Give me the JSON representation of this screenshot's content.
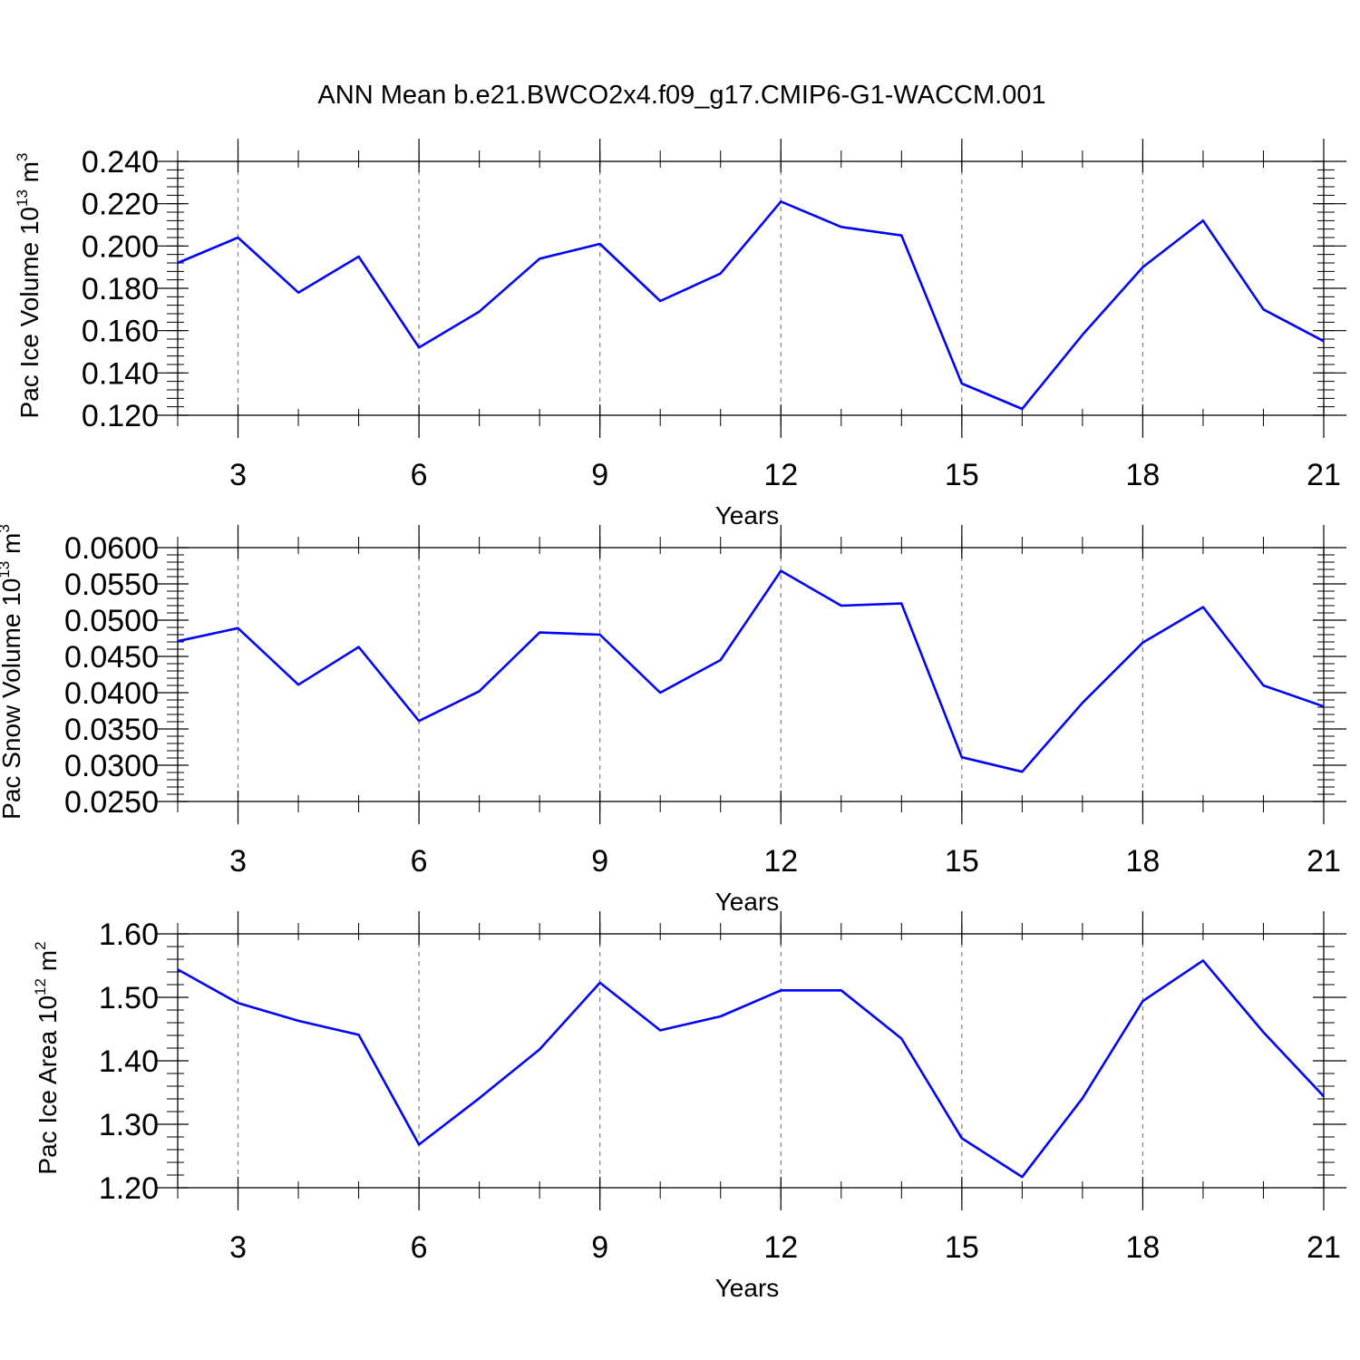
{
  "title": "ANN Mean b.e21.BWCO2x4.f09_g17.CMIP6-G1-WACCM.001",
  "colors": {
    "line": "#0000ff",
    "axis": "#000000",
    "grid": "#808080"
  },
  "chart_data": [
    {
      "type": "line",
      "ylabel_main": "Pac Ice Volume 10",
      "ylabel_exp": "13",
      "ylabel_unit": " m",
      "ylabel_unit_exp": "3",
      "xlabel": "Years",
      "xlim": [
        2,
        21
      ],
      "ylim": [
        0.12,
        0.24
      ],
      "xticks": [
        "3",
        "6",
        "9",
        "12",
        "15",
        "18",
        "21"
      ],
      "yticks": [
        "0.120",
        "0.140",
        "0.160",
        "0.180",
        "0.200",
        "0.220",
        "0.240"
      ],
      "grid": "x-dashed",
      "x": [
        2,
        3,
        4,
        5,
        6,
        7,
        8,
        9,
        10,
        11,
        12,
        13,
        14,
        15,
        16,
        17,
        18,
        19,
        20,
        21
      ],
      "series": [
        {
          "values": [
            0.192,
            0.204,
            0.178,
            0.195,
            0.152,
            0.169,
            0.194,
            0.201,
            0.174,
            0.187,
            0.221,
            0.209,
            0.205,
            0.135,
            0.123,
            0.158,
            0.19,
            0.212,
            0.17,
            0.155
          ]
        }
      ]
    },
    {
      "type": "line",
      "ylabel_main": "Pac Snow Volume 10",
      "ylabel_exp": "13",
      "ylabel_unit": " m",
      "ylabel_unit_exp": "3",
      "xlabel": "Years",
      "xlim": [
        2,
        21
      ],
      "ylim": [
        0.025,
        0.06
      ],
      "xticks": [
        "3",
        "6",
        "9",
        "12",
        "15",
        "18",
        "21"
      ],
      "yticks": [
        "0.0250",
        "0.0300",
        "0.0350",
        "0.0400",
        "0.0450",
        "0.0500",
        "0.0550",
        "0.0600"
      ],
      "grid": "x-dashed",
      "x": [
        2,
        3,
        4,
        5,
        6,
        7,
        8,
        9,
        10,
        11,
        12,
        13,
        14,
        15,
        16,
        17,
        18,
        19,
        20,
        21
      ],
      "series": [
        {
          "values": [
            0.0471,
            0.0489,
            0.0411,
            0.0463,
            0.0361,
            0.0402,
            0.0483,
            0.048,
            0.04,
            0.0445,
            0.0568,
            0.052,
            0.0523,
            0.0311,
            0.0291,
            0.0386,
            0.0469,
            0.0518,
            0.041,
            0.0381
          ]
        }
      ]
    },
    {
      "type": "line",
      "ylabel_main": "Pac Ice Area 10",
      "ylabel_exp": "12",
      "ylabel_unit": " m",
      "ylabel_unit_exp": "2",
      "xlabel": "Years",
      "xlim": [
        2,
        21
      ],
      "ylim": [
        1.2,
        1.6
      ],
      "xticks": [
        "3",
        "6",
        "9",
        "12",
        "15",
        "18",
        "21"
      ],
      "yticks": [
        "1.20",
        "1.30",
        "1.40",
        "1.50",
        "1.60"
      ],
      "grid": "x-dashed",
      "x": [
        2,
        3,
        4,
        5,
        6,
        7,
        8,
        9,
        10,
        11,
        12,
        13,
        14,
        15,
        16,
        17,
        18,
        19,
        20,
        21
      ],
      "series": [
        {
          "values": [
            1.544,
            1.491,
            1.463,
            1.441,
            1.268,
            1.341,
            1.418,
            1.523,
            1.448,
            1.47,
            1.511,
            1.511,
            1.435,
            1.278,
            1.217,
            1.341,
            1.494,
            1.558,
            1.445,
            1.344
          ]
        }
      ]
    }
  ]
}
